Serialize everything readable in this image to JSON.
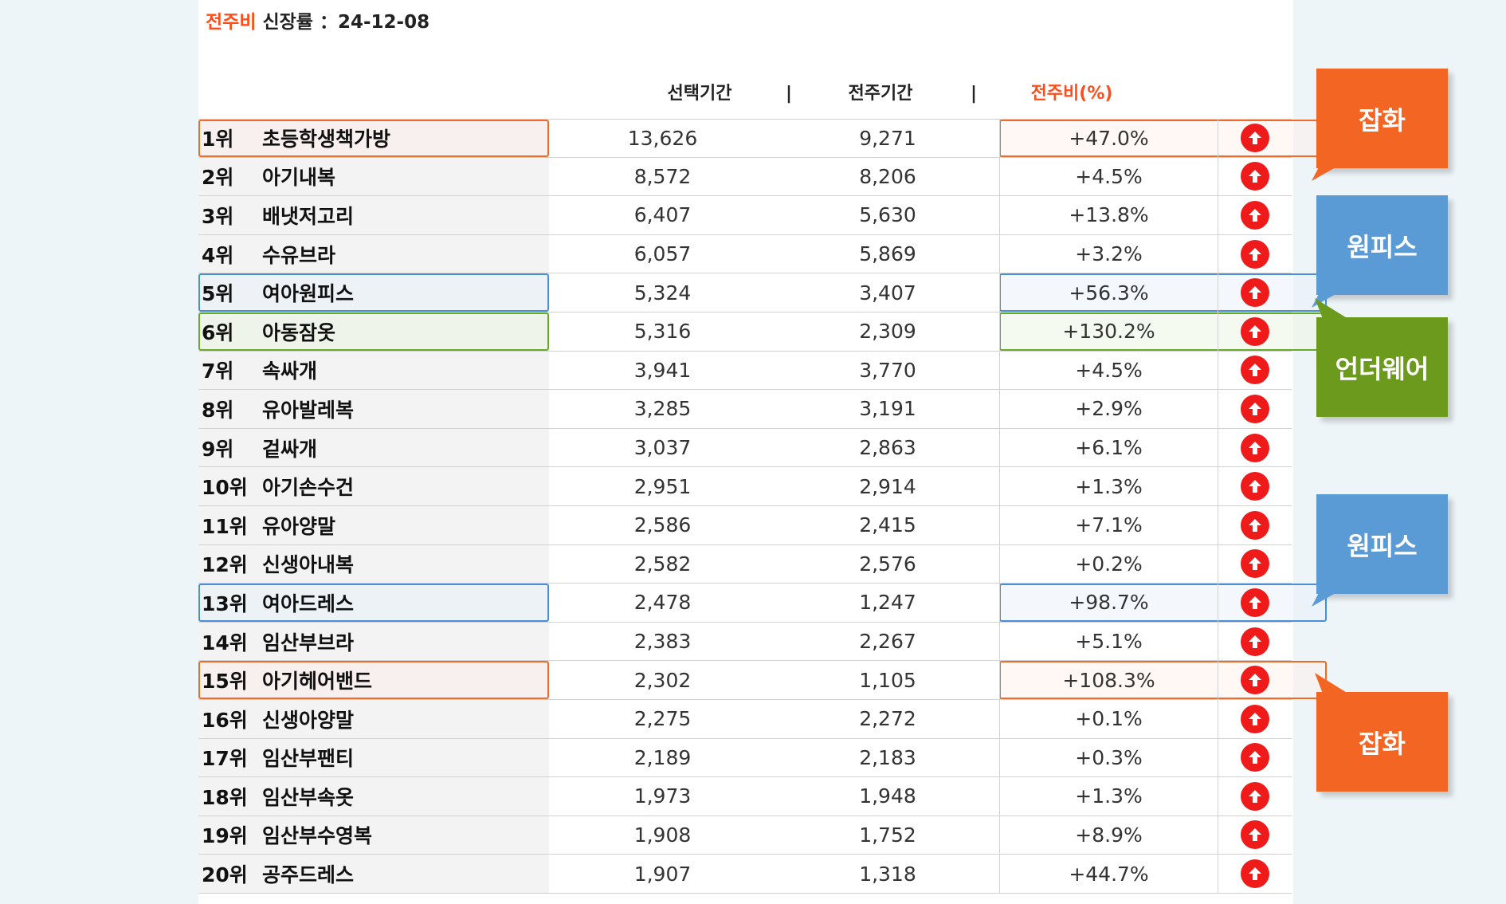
{
  "caption": {
    "accent": "전주비",
    "text": " 신장률 ：24-12-08"
  },
  "headers": {
    "selected": "선택기간",
    "sep1": "|",
    "previous": "전주기간",
    "sep2": "|",
    "ratio": "전주비(%)"
  },
  "colors": {
    "accent": "#ff4d1a",
    "orange": "#f26522",
    "blue": "#5b9bd5",
    "green": "#6b9a1c",
    "up": "#ef1a1a"
  },
  "rows": [
    {
      "rank": "1위",
      "name": "초등학생책가방",
      "selected": "13,626",
      "previous": "9,271",
      "ratio": "+47.0%",
      "highlight": "orange"
    },
    {
      "rank": "2위",
      "name": "아기내복",
      "selected": "8,572",
      "previous": "8,206",
      "ratio": "+4.5%",
      "highlight": ""
    },
    {
      "rank": "3위",
      "name": "배냇저고리",
      "selected": "6,407",
      "previous": "5,630",
      "ratio": "+13.8%",
      "highlight": ""
    },
    {
      "rank": "4위",
      "name": "수유브라",
      "selected": "6,057",
      "previous": "5,869",
      "ratio": "+3.2%",
      "highlight": ""
    },
    {
      "rank": "5위",
      "name": "여아원피스",
      "selected": "5,324",
      "previous": "3,407",
      "ratio": "+56.3%",
      "highlight": "blue"
    },
    {
      "rank": "6위",
      "name": "아동잠옷",
      "selected": "5,316",
      "previous": "2,309",
      "ratio": "+130.2%",
      "highlight": "green"
    },
    {
      "rank": "7위",
      "name": "속싸개",
      "selected": "3,941",
      "previous": "3,770",
      "ratio": "+4.5%",
      "highlight": ""
    },
    {
      "rank": "8위",
      "name": "유아발레복",
      "selected": "3,285",
      "previous": "3,191",
      "ratio": "+2.9%",
      "highlight": ""
    },
    {
      "rank": "9위",
      "name": "겉싸개",
      "selected": "3,037",
      "previous": "2,863",
      "ratio": "+6.1%",
      "highlight": ""
    },
    {
      "rank": "10위",
      "name": "아기손수건",
      "selected": "2,951",
      "previous": "2,914",
      "ratio": "+1.3%",
      "highlight": ""
    },
    {
      "rank": "11위",
      "name": "유아양말",
      "selected": "2,586",
      "previous": "2,415",
      "ratio": "+7.1%",
      "highlight": ""
    },
    {
      "rank": "12위",
      "name": "신생아내복",
      "selected": "2,582",
      "previous": "2,576",
      "ratio": "+0.2%",
      "highlight": ""
    },
    {
      "rank": "13위",
      "name": "여아드레스",
      "selected": "2,478",
      "previous": "1,247",
      "ratio": "+98.7%",
      "highlight": "blue"
    },
    {
      "rank": "14위",
      "name": "임산부브라",
      "selected": "2,383",
      "previous": "2,267",
      "ratio": "+5.1%",
      "highlight": ""
    },
    {
      "rank": "15위",
      "name": "아기헤어밴드",
      "selected": "2,302",
      "previous": "1,105",
      "ratio": "+108.3%",
      "highlight": "orange"
    },
    {
      "rank": "16위",
      "name": "신생아양말",
      "selected": "2,275",
      "previous": "2,272",
      "ratio": "+0.1%",
      "highlight": ""
    },
    {
      "rank": "17위",
      "name": "임산부팬티",
      "selected": "2,189",
      "previous": "2,183",
      "ratio": "+0.3%",
      "highlight": ""
    },
    {
      "rank": "18위",
      "name": "임산부속옷",
      "selected": "1,973",
      "previous": "1,948",
      "ratio": "+1.3%",
      "highlight": ""
    },
    {
      "rank": "19위",
      "name": "임산부수영복",
      "selected": "1,908",
      "previous": "1,752",
      "ratio": "+8.9%",
      "highlight": ""
    },
    {
      "rank": "20위",
      "name": "공주드레스",
      "selected": "1,907",
      "previous": "1,318",
      "ratio": "+44.7%",
      "highlight": ""
    }
  ],
  "callouts": [
    {
      "label": "잡화",
      "color": "orange"
    },
    {
      "label": "원피스",
      "color": "blue"
    },
    {
      "label": "언더웨어",
      "color": "green"
    },
    {
      "label": "원피스",
      "color": "blue"
    },
    {
      "label": "잡화",
      "color": "orange"
    }
  ],
  "icons": {
    "trend": "arrow-up-circle-icon"
  }
}
